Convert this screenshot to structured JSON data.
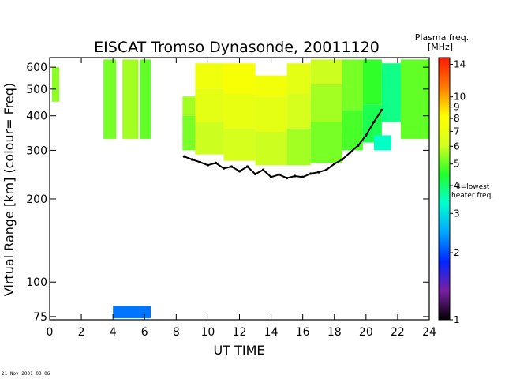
{
  "chart_data": {
    "type": "heatmap",
    "title": "EISCAT Tromso Dynasonde,  20011120",
    "xlabel": "UT TIME",
    "ylabel": "Virtual Range [km]   (colour= Freq)",
    "xlim": [
      0,
      24
    ],
    "ylim": [
      73,
      650
    ],
    "yscale": "log",
    "x_ticks": [
      "0",
      "2",
      "4",
      "6",
      "8",
      "10",
      "12",
      "14",
      "16",
      "18",
      "20",
      "22",
      "24"
    ],
    "y_ticks": [
      "75",
      "100",
      "200",
      "300",
      "400",
      "500",
      "600"
    ],
    "colorbar": {
      "title_line1": "Plasma freq.",
      "title_line2": "[MHz]",
      "scale": "log",
      "range": [
        1,
        15
      ],
      "ticks": [
        "1",
        "2",
        "3",
        "4",
        "5",
        "6",
        "7",
        "8",
        "9",
        "10",
        "14"
      ],
      "colors": [
        "#000000",
        "#7a1fa2",
        "#0026ff",
        "#00a6ff",
        "#00ffd0",
        "#23ff2a",
        "#d4ff1f",
        "#ffff00",
        "#ff7a00",
        "#ff1a00"
      ],
      "annotation_line1": "4=lowest",
      "annotation_line2": "heater freq."
    },
    "blocks": [
      {
        "x0": 8.4,
        "x1": 9.2,
        "y0": 300,
        "y1": 400,
        "f": 5.2
      },
      {
        "x0": 8.4,
        "x1": 9.2,
        "y0": 400,
        "y1": 470,
        "f": 5.6
      },
      {
        "x0": 9.2,
        "x1": 11,
        "y0": 290,
        "y1": 380,
        "f": 6
      },
      {
        "x0": 9.2,
        "x1": 11,
        "y0": 380,
        "y1": 500,
        "f": 6.8
      },
      {
        "x0": 9.2,
        "x1": 11,
        "y0": 500,
        "y1": 620,
        "f": 7.4
      },
      {
        "x0": 11,
        "x1": 13,
        "y0": 275,
        "y1": 360,
        "f": 6.2
      },
      {
        "x0": 11,
        "x1": 13,
        "y0": 360,
        "y1": 480,
        "f": 7
      },
      {
        "x0": 11,
        "x1": 13,
        "y0": 480,
        "y1": 620,
        "f": 7.8
      },
      {
        "x0": 13,
        "x1": 15,
        "y0": 265,
        "y1": 350,
        "f": 6
      },
      {
        "x0": 13,
        "x1": 15,
        "y0": 350,
        "y1": 470,
        "f": 6.8
      },
      {
        "x0": 13,
        "x1": 15,
        "y0": 470,
        "y1": 560,
        "f": 7.5
      },
      {
        "x0": 15,
        "x1": 16.5,
        "y0": 265,
        "y1": 360,
        "f": 5.6
      },
      {
        "x0": 15,
        "x1": 16.5,
        "y0": 360,
        "y1": 480,
        "f": 6.2
      },
      {
        "x0": 15,
        "x1": 16.5,
        "y0": 480,
        "y1": 620,
        "f": 6.8
      },
      {
        "x0": 16.5,
        "x1": 18.5,
        "y0": 270,
        "y1": 380,
        "f": 5.2
      },
      {
        "x0": 16.5,
        "x1": 18.5,
        "y0": 380,
        "y1": 520,
        "f": 5.6
      },
      {
        "x0": 16.5,
        "x1": 18.5,
        "y0": 520,
        "y1": 640,
        "f": 6
      },
      {
        "x0": 18.5,
        "x1": 19.8,
        "y0": 300,
        "y1": 420,
        "f": 4.8
      },
      {
        "x0": 18.5,
        "x1": 19.8,
        "y0": 420,
        "y1": 640,
        "f": 5.2
      },
      {
        "x0": 19.8,
        "x1": 21,
        "y0": 320,
        "y1": 440,
        "f": 4.2
      },
      {
        "x0": 19.8,
        "x1": 21,
        "y0": 440,
        "y1": 640,
        "f": 4.6
      },
      {
        "x0": 20.5,
        "x1": 21.6,
        "y0": 300,
        "y1": 340,
        "f": 3.4
      },
      {
        "x0": 21,
        "x1": 22.2,
        "y0": 380,
        "y1": 620,
        "f": 3.8
      },
      {
        "x0": 22.2,
        "x1": 24,
        "y0": 330,
        "y1": 640,
        "f": 5
      },
      {
        "x0": 0.15,
        "x1": 0.6,
        "y0": 450,
        "y1": 600,
        "f": 5.4
      },
      {
        "x0": 3.4,
        "x1": 4.2,
        "y0": 330,
        "y1": 640,
        "f": 5.2
      },
      {
        "x0": 4.6,
        "x1": 5.6,
        "y0": 330,
        "y1": 640,
        "f": 5.6
      },
      {
        "x0": 5.7,
        "x1": 6.4,
        "y0": 330,
        "y1": 640,
        "f": 5
      },
      {
        "x0": 4.0,
        "x1": 6.4,
        "y0": 74,
        "y1": 82,
        "f": 2.2
      }
    ],
    "trace": {
      "x": [
        8.5,
        9,
        9.5,
        10,
        10.5,
        11,
        11.5,
        12,
        12.5,
        13,
        13.5,
        14,
        14.5,
        15,
        15.5,
        16,
        16.5,
        17,
        17.5,
        18,
        18.5,
        19,
        19.5,
        20,
        20.5,
        21
      ],
      "y": [
        285,
        278,
        272,
        265,
        270,
        258,
        262,
        252,
        262,
        246,
        255,
        240,
        245,
        238,
        242,
        240,
        247,
        250,
        255,
        268,
        278,
        295,
        312,
        340,
        380,
        420
      ]
    }
  },
  "footer_stamp": "21 Nov 2001 00:06"
}
